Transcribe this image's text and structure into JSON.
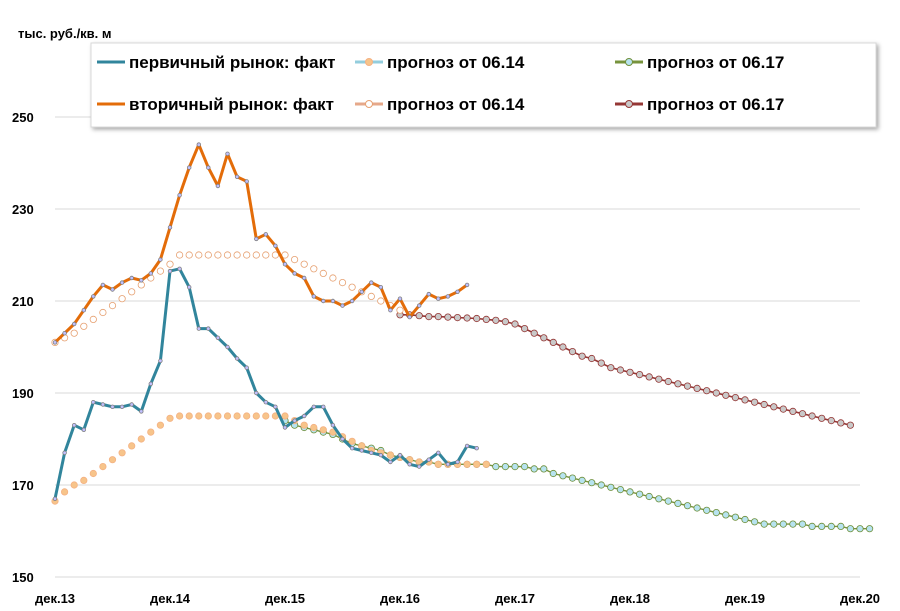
{
  "chart_data": {
    "type": "line",
    "ylabel": "тыс. руб./кв. м",
    "xlabel": "",
    "ylim": [
      150,
      255
    ],
    "yticks": [
      150,
      170,
      190,
      210,
      230,
      250
    ],
    "x_ticks": [
      "дек.13",
      "дек.14",
      "дек.15",
      "дек.16",
      "дек.17",
      "дек.18",
      "дек.19",
      "дек.20"
    ],
    "x_start": "2013-12",
    "x_end": "2020-12",
    "grid": "horizontal",
    "legend_position": "top",
    "series": [
      {
        "name": "первичный рынок: факт",
        "color": "#31859c",
        "start_month": 0,
        "values": [
          167,
          177,
          183,
          182,
          188,
          187.5,
          187,
          187,
          187.5,
          186,
          192,
          197,
          216.5,
          217,
          213,
          204,
          204,
          202,
          200,
          197.5,
          195.5,
          190,
          188,
          187,
          182.5,
          184,
          185,
          187,
          187,
          183,
          180,
          178,
          177.5,
          177,
          176.5,
          175,
          176.5,
          174.5,
          174,
          175.5,
          177,
          174.5,
          175,
          178.5,
          178
        ]
      },
      {
        "name": "прогноз от 06.14",
        "color": "#93cddd",
        "marker": "#f7c48a",
        "start_month": 0,
        "values": [
          166.5,
          168.5,
          170,
          171,
          172.5,
          174,
          175.5,
          177,
          178.5,
          180,
          181.5,
          183,
          184.5,
          185,
          185,
          185,
          185,
          185,
          185,
          185,
          185,
          185,
          185,
          185,
          185,
          184,
          183,
          182.5,
          182,
          181.5,
          180.5,
          179.5,
          178.5,
          177.5,
          177,
          176.5,
          176,
          175.5,
          175,
          175,
          174.5,
          174.5,
          174.5,
          174.5,
          174.5,
          174.5
        ]
      },
      {
        "name": "прогноз от 06.17",
        "color": "#77933c",
        "marker": "#b7e3ef",
        "start_month": 24,
        "values": [
          184,
          183,
          182.5,
          182,
          181.5,
          181,
          180,
          179,
          178.5,
          178,
          177.5,
          176.5,
          176,
          175.5,
          175,
          175,
          174.5,
          174.5,
          174.5,
          174.5,
          174.5,
          174.5,
          174,
          174,
          174,
          174,
          173.5,
          173.5,
          172.5,
          172,
          171.5,
          171,
          170.5,
          170,
          169.5,
          169,
          168.5,
          168,
          167.5,
          167,
          166.5,
          166,
          165.5,
          165,
          164.5,
          164,
          163.5,
          163,
          162.5,
          162,
          161.5,
          161.5,
          161.5,
          161.5,
          161.5,
          161,
          161,
          161,
          161,
          160.5,
          160.5,
          160.5
        ]
      },
      {
        "name": "вторичный рынок: факт",
        "color": "#e36c09",
        "start_month": 0,
        "values": [
          201,
          203,
          205,
          208,
          211,
          213.5,
          212.5,
          214,
          215,
          214.5,
          216,
          219,
          226,
          233,
          239,
          244,
          239,
          235,
          242,
          237,
          236,
          223.5,
          224.5,
          222,
          218,
          216,
          215,
          211,
          210,
          210,
          209,
          210,
          212,
          214,
          213,
          208,
          210.5,
          206.5,
          209,
          211.5,
          210.5,
          211,
          212,
          213.5
        ]
      },
      {
        "name": "прогноз от 06.14",
        "color": "#e6a88a",
        "marker": "#ffffff",
        "start_month": 0,
        "values": [
          201,
          202,
          203,
          204.5,
          206,
          207.5,
          209,
          210.5,
          212,
          213.5,
          215,
          216.5,
          218,
          220,
          220,
          220,
          220,
          220,
          220,
          220,
          220,
          220,
          220,
          220,
          220,
          219,
          218,
          217,
          216,
          215,
          214,
          213,
          212,
          211,
          210,
          209,
          208
        ]
      },
      {
        "name": "прогноз от 06.17",
        "color": "#953735",
        "marker": "#c9c9c9",
        "start_month": 36,
        "values": [
          207,
          207,
          206.8,
          206.6,
          206.6,
          206.5,
          206.4,
          206.3,
          206.2,
          206,
          205.8,
          205.5,
          205,
          204,
          203,
          202,
          201,
          200,
          199,
          198,
          197.5,
          196.5,
          195.5,
          195,
          194.5,
          194,
          193.5,
          193,
          192.5,
          192,
          191.5,
          191,
          190.5,
          190,
          189.5,
          189,
          188.5,
          188,
          187.5,
          187,
          186.5,
          186,
          185.5,
          185,
          184.5,
          184,
          183.5,
          183
        ]
      }
    ]
  }
}
